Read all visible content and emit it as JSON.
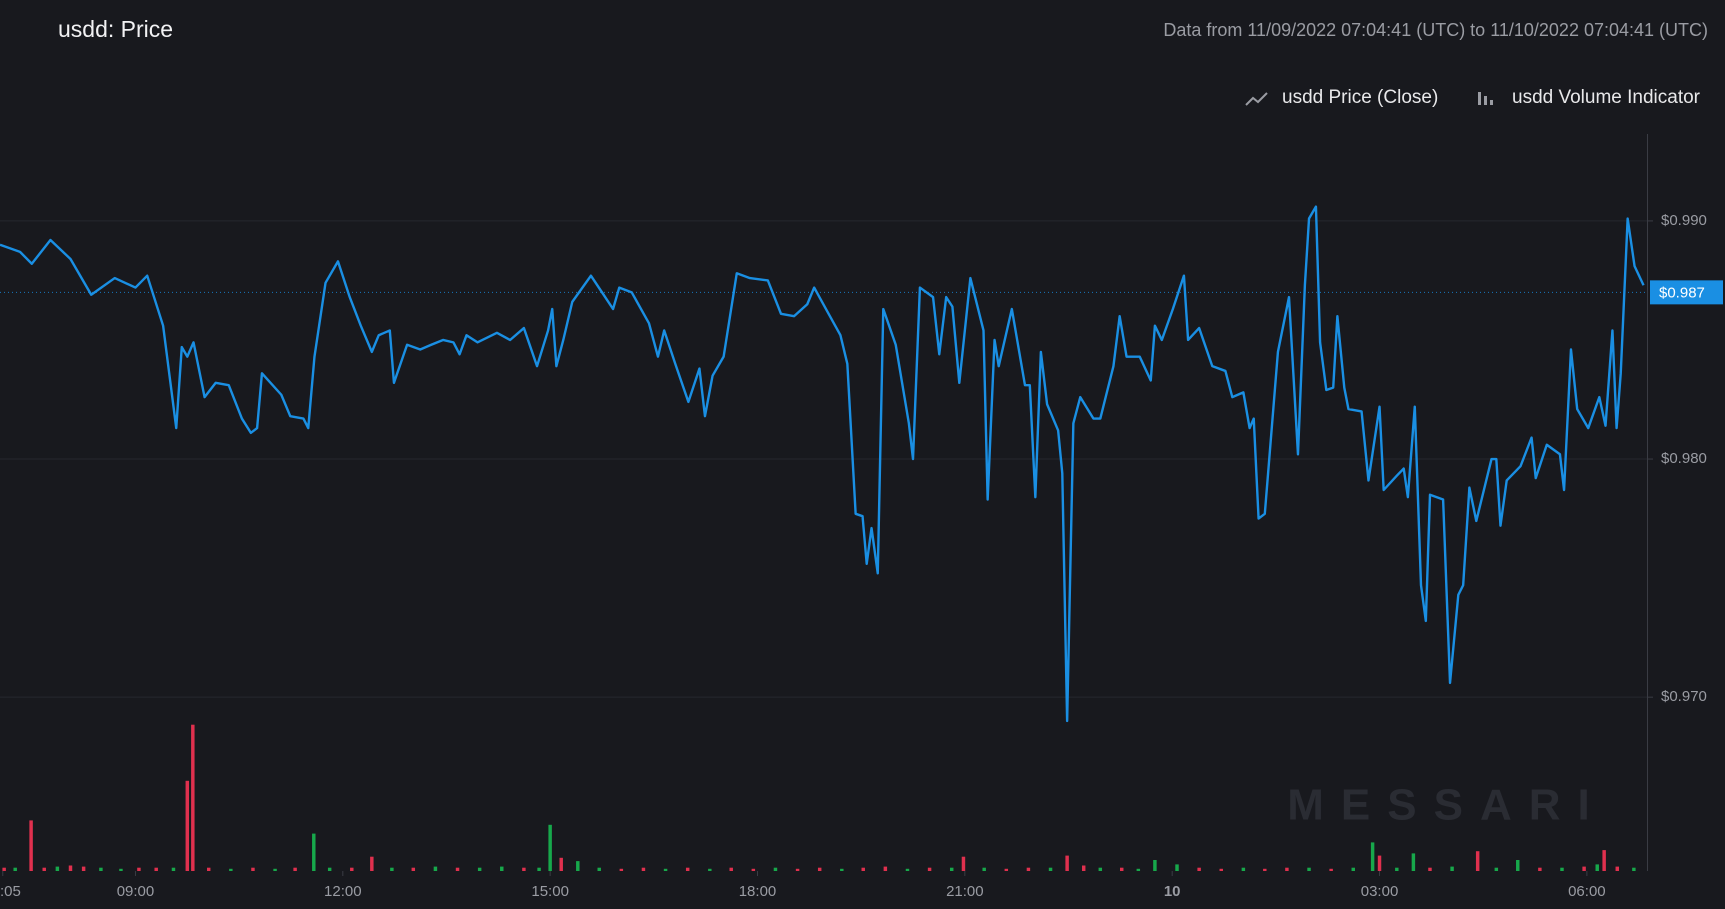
{
  "chart_data": {
    "type": "line",
    "title": "usdd: Price",
    "subtitle": "Data from 11/09/2022 07:04:41 (UTC) to 11/10/2022 07:04:41 (UTC)",
    "watermark": "MESSARI",
    "legend": "top-right",
    "grid": true,
    "xlim": [
      7.04,
      30.87
    ],
    "xticks": [
      {
        "value": 7.08,
        "label": ":05"
      },
      {
        "value": 9,
        "label": "09:00"
      },
      {
        "value": 12,
        "label": "12:00"
      },
      {
        "value": 15,
        "label": "15:00"
      },
      {
        "value": 18,
        "label": "18:00"
      },
      {
        "value": 21,
        "label": "21:00"
      },
      {
        "value": 24,
        "label": "10"
      },
      {
        "value": 27,
        "label": "03:00"
      },
      {
        "value": 30,
        "label": "06:00"
      }
    ],
    "ylim": [
      0.9627,
      0.99365
    ],
    "yticks": [
      {
        "value": 0.97,
        "label": "$0.970"
      },
      {
        "value": 0.98,
        "label": "$0.980"
      },
      {
        "value": 0.99,
        "label": "$0.990"
      }
    ],
    "y2lim": [
      0,
      670
    ],
    "last_value": {
      "value": 0.987,
      "label": "$0.987",
      "color": "#1a8fe3"
    },
    "series": [
      {
        "name": "usdd Price (Close)",
        "type": "line",
        "color": "#1a8fe3",
        "x": [
          7.04,
          7.33,
          7.5,
          7.77,
          8.06,
          8.36,
          8.7,
          9.0,
          9.17,
          9.4,
          9.59,
          9.67,
          9.75,
          9.84,
          10.0,
          10.16,
          10.35,
          10.54,
          10.67,
          10.76,
          10.83,
          11.11,
          11.24,
          11.43,
          11.5,
          11.59,
          11.75,
          11.93,
          12.1,
          12.26,
          12.42,
          12.52,
          12.68,
          12.74,
          12.93,
          13.12,
          13.28,
          13.45,
          13.6,
          13.69,
          13.79,
          13.95,
          14.23,
          14.42,
          14.62,
          14.81,
          14.97,
          15.03,
          15.09,
          15.19,
          15.32,
          15.59,
          15.75,
          15.91,
          16.0,
          16.18,
          16.43,
          16.56,
          16.65,
          16.81,
          17.0,
          17.16,
          17.24,
          17.35,
          17.51,
          17.7,
          17.89,
          18.15,
          18.34,
          18.53,
          18.72,
          18.82,
          19.01,
          19.2,
          19.3,
          19.42,
          19.52,
          19.58,
          19.65,
          19.74,
          19.82,
          20.0,
          20.19,
          20.25,
          20.35,
          20.54,
          20.63,
          20.73,
          20.82,
          20.92,
          21.08,
          21.27,
          21.33,
          21.43,
          21.49,
          21.68,
          21.87,
          21.94,
          22.02,
          22.1,
          22.19,
          22.35,
          22.41,
          22.48,
          22.57,
          22.67,
          22.86,
          22.96,
          23.15,
          23.24,
          23.34,
          23.53,
          23.69,
          23.75,
          23.85,
          24.01,
          24.17,
          24.23,
          24.39,
          24.58,
          24.77,
          24.87,
          25.03,
          25.12,
          25.18,
          25.25,
          25.34,
          25.53,
          25.69,
          25.82,
          25.92,
          25.98,
          26.08,
          26.14,
          26.23,
          26.33,
          26.39,
          26.49,
          26.55,
          26.74,
          26.84,
          27.0,
          27.06,
          27.25,
          27.35,
          27.41,
          27.51,
          27.6,
          27.67,
          27.73,
          27.92,
          28.02,
          28.14,
          28.21,
          28.3,
          28.4,
          28.62,
          28.69,
          28.75,
          28.84,
          29.04,
          29.2,
          29.26,
          29.42,
          29.61,
          29.67,
          29.77,
          29.86,
          30.02,
          30.18,
          30.27,
          30.37,
          30.43,
          30.49,
          30.59,
          30.69,
          30.82
        ],
        "values": [
          0.989,
          0.9887,
          0.9882,
          0.9892,
          0.9884,
          0.9869,
          0.9876,
          0.9872,
          0.9877,
          0.9856,
          0.9813,
          0.9847,
          0.9843,
          0.9849,
          0.9826,
          0.9832,
          0.9831,
          0.9817,
          0.9811,
          0.9813,
          0.9836,
          0.9827,
          0.9818,
          0.9817,
          0.9813,
          0.9843,
          0.9874,
          0.9883,
          0.9868,
          0.9856,
          0.9845,
          0.9852,
          0.9854,
          0.9832,
          0.9848,
          0.9846,
          0.9848,
          0.985,
          0.9849,
          0.9844,
          0.9852,
          0.9849,
          0.9853,
          0.985,
          0.9855,
          0.9839,
          0.9854,
          0.9863,
          0.9839,
          0.985,
          0.9866,
          0.9877,
          0.987,
          0.9863,
          0.9872,
          0.987,
          0.9857,
          0.9843,
          0.9854,
          0.984,
          0.9824,
          0.9838,
          0.9818,
          0.9835,
          0.9843,
          0.9878,
          0.9876,
          0.9875,
          0.9861,
          0.986,
          0.9865,
          0.9872,
          0.9862,
          0.9852,
          0.984,
          0.9777,
          0.9776,
          0.9756,
          0.9771,
          0.9752,
          0.9863,
          0.9848,
          0.9815,
          0.98,
          0.9872,
          0.9868,
          0.9844,
          0.9868,
          0.9864,
          0.9832,
          0.9876,
          0.9854,
          0.9783,
          0.985,
          0.9839,
          0.9863,
          0.9831,
          0.9831,
          0.9784,
          0.9845,
          0.9823,
          0.9812,
          0.9794,
          0.969,
          0.9815,
          0.9826,
          0.9817,
          0.9817,
          0.9839,
          0.986,
          0.9843,
          0.9843,
          0.9833,
          0.9856,
          0.985,
          0.9863,
          0.9877,
          0.985,
          0.9855,
          0.9839,
          0.9837,
          0.9826,
          0.9828,
          0.9813,
          0.9817,
          0.9775,
          0.9777,
          0.9845,
          0.9868,
          0.9802,
          0.9873,
          0.9901,
          0.9906,
          0.9849,
          0.9829,
          0.983,
          0.986,
          0.983,
          0.9821,
          0.982,
          0.9791,
          0.9822,
          0.9787,
          0.9793,
          0.9796,
          0.9784,
          0.9822,
          0.9747,
          0.9732,
          0.9785,
          0.9783,
          0.9706,
          0.9743,
          0.9747,
          0.9788,
          0.9774,
          0.98,
          0.98,
          0.9772,
          0.9791,
          0.9797,
          0.9809,
          0.9792,
          0.9806,
          0.9802,
          0.9787,
          0.9846,
          0.9821,
          0.9813,
          0.9826,
          0.9814,
          0.9854,
          0.9813,
          0.9836,
          0.9901,
          0.9881,
          0.9873
        ]
      },
      {
        "name": "usdd Volume Indicator",
        "type": "bar",
        "axis": "y2",
        "color": "#9a9ca3",
        "x": [
          7.1,
          7.26,
          7.49,
          7.68,
          7.87,
          8.06,
          8.25,
          8.5,
          8.79,
          9.05,
          9.3,
          9.55,
          9.75,
          9.83,
          10.06,
          10.38,
          10.7,
          11.02,
          11.31,
          11.58,
          11.81,
          12.13,
          12.42,
          12.71,
          13.02,
          13.34,
          13.66,
          13.98,
          14.3,
          14.62,
          14.84,
          15.0,
          15.16,
          15.4,
          15.71,
          16.03,
          16.35,
          16.67,
          16.99,
          17.31,
          17.62,
          17.94,
          18.26,
          18.58,
          18.9,
          19.22,
          19.53,
          19.85,
          20.17,
          20.49,
          20.81,
          20.98,
          21.28,
          21.6,
          21.92,
          22.24,
          22.48,
          22.72,
          22.96,
          23.27,
          23.51,
          23.75,
          24.07,
          24.39,
          24.71,
          25.03,
          25.34,
          25.66,
          25.98,
          26.3,
          26.62,
          26.9,
          27.0,
          27.25,
          27.49,
          27.73,
          28.05,
          28.42,
          28.69,
          29.0,
          29.32,
          29.64,
          29.96,
          30.15,
          30.25,
          30.44,
          30.68
        ],
        "values": [
          3,
          3,
          46,
          3,
          4,
          5,
          4,
          3,
          2,
          3,
          3,
          3,
          82,
          133,
          3,
          2,
          3,
          2,
          3,
          34,
          3,
          3,
          13,
          3,
          3,
          4,
          3,
          3,
          4,
          3,
          3,
          42,
          12,
          9,
          3,
          2,
          3,
          2,
          3,
          2,
          3,
          2,
          3,
          2,
          3,
          2,
          3,
          4,
          2,
          3,
          3,
          13,
          3,
          2,
          3,
          3,
          14,
          5,
          3,
          3,
          2,
          10,
          6,
          3,
          2,
          3,
          2,
          3,
          3,
          2,
          3,
          26,
          14,
          3,
          16,
          3,
          4,
          18,
          3,
          10,
          3,
          3,
          4,
          6,
          19,
          4,
          3
        ],
        "colors": [
          "#e0304e",
          "#17a84b",
          "#e0304e",
          "#e0304e",
          "#17a84b",
          "#e0304e",
          "#e0304e",
          "#17a84b",
          "#17a84b",
          "#e0304e",
          "#e0304e",
          "#17a84b",
          "#e0304e",
          "#e0304e",
          "#e0304e",
          "#17a84b",
          "#e0304e",
          "#17a84b",
          "#e0304e",
          "#17a84b",
          "#17a84b",
          "#e0304e",
          "#e0304e",
          "#17a84b",
          "#e0304e",
          "#17a84b",
          "#e0304e",
          "#17a84b",
          "#17a84b",
          "#e0304e",
          "#17a84b",
          "#17a84b",
          "#e0304e",
          "#17a84b",
          "#17a84b",
          "#e0304e",
          "#e0304e",
          "#17a84b",
          "#e0304e",
          "#17a84b",
          "#e0304e",
          "#e0304e",
          "#17a84b",
          "#e0304e",
          "#e0304e",
          "#17a84b",
          "#e0304e",
          "#e0304e",
          "#17a84b",
          "#e0304e",
          "#17a84b",
          "#e0304e",
          "#17a84b",
          "#e0304e",
          "#e0304e",
          "#17a84b",
          "#e0304e",
          "#e0304e",
          "#17a84b",
          "#e0304e",
          "#17a84b",
          "#17a84b",
          "#17a84b",
          "#e0304e",
          "#e0304e",
          "#17a84b",
          "#e0304e",
          "#e0304e",
          "#17a84b",
          "#e0304e",
          "#17a84b",
          "#17a84b",
          "#e0304e",
          "#17a84b",
          "#17a84b",
          "#e0304e",
          "#17a84b",
          "#e0304e",
          "#17a84b",
          "#17a84b",
          "#e0304e",
          "#17a84b",
          "#e0304e",
          "#17a84b",
          "#e0304e",
          "#e0304e",
          "#17a84b"
        ]
      }
    ]
  }
}
